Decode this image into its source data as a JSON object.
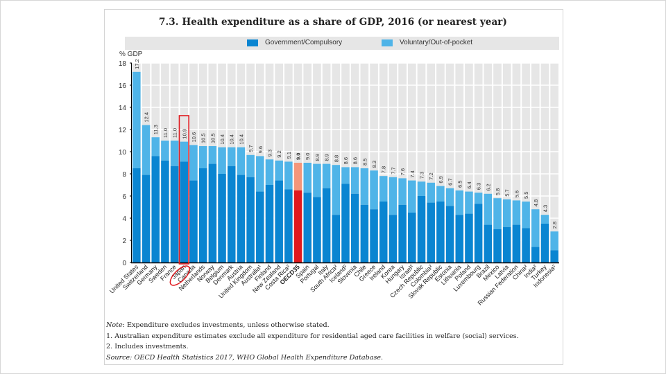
{
  "chart_data": {
    "type": "bar",
    "stacked": true,
    "title": "7.3. Health expenditure as a share of GDP, 2016 (or nearest year)",
    "xlabel": "",
    "ylabel": "% GDP",
    "ylim": [
      0,
      18
    ],
    "yticks": [
      0,
      2,
      4,
      6,
      8,
      10,
      12,
      14,
      16,
      18
    ],
    "grid": true,
    "legend_position": "top",
    "highlight": {
      "category": "Japan",
      "style": "red outline box and circled label"
    },
    "categories": [
      "United States",
      "Switzerland",
      "Germany",
      "Sweden",
      "France",
      "Japan",
      "Canada",
      "Netherlands",
      "Norway",
      "Belgium",
      "Denmark",
      "Austria",
      "United Kingdom",
      "Australia¹",
      "Finland",
      "New Zealand",
      "Costa Rica²",
      "OECD35",
      "Spain",
      "Portugal",
      "Italy",
      "South Africa²",
      "Iceland²",
      "Slovenia",
      "Chile",
      "Greece",
      "Ireland",
      "Korea",
      "Hungary",
      "Israel²",
      "Czech Republic",
      "Colombia²",
      "Slovak Republic",
      "Estonia",
      "Lithuania",
      "Poland",
      "Luxembourg",
      "Brazil",
      "Mexico",
      "Latvia",
      "Russian Federation",
      "China²",
      "India²",
      "Turkey",
      "Indonesia²"
    ],
    "totals": [
      17.2,
      12.4,
      11.3,
      11.0,
      11.0,
      10.9,
      10.6,
      10.5,
      10.5,
      10.4,
      10.4,
      10.4,
      9.7,
      9.6,
      9.3,
      9.2,
      9.1,
      9.0,
      9.0,
      8.9,
      8.9,
      8.8,
      8.6,
      8.6,
      8.5,
      8.3,
      7.8,
      7.7,
      7.6,
      7.4,
      7.3,
      7.2,
      6.9,
      6.7,
      6.5,
      6.4,
      6.3,
      6.2,
      5.8,
      5.7,
      5.6,
      5.5,
      4.8,
      4.3,
      2.8
    ],
    "series": [
      {
        "name": "Government/Compulsory",
        "color": "#0a85d1",
        "values": [
          8.5,
          7.9,
          9.6,
          9.2,
          8.7,
          9.1,
          7.4,
          8.5,
          8.9,
          8.0,
          8.7,
          7.9,
          7.7,
          6.4,
          7.0,
          7.4,
          6.6,
          6.5,
          6.3,
          5.9,
          6.7,
          4.3,
          7.1,
          6.2,
          5.2,
          4.8,
          5.5,
          4.3,
          5.2,
          4.5,
          6.0,
          5.4,
          5.5,
          5.1,
          4.3,
          4.4,
          5.3,
          3.4,
          3.0,
          3.2,
          3.4,
          3.1,
          1.4,
          3.5,
          1.1
        ]
      },
      {
        "name": "Voluntary/Out-of-pocket",
        "color": "#4fb4e8",
        "values": [
          8.7,
          4.5,
          1.7,
          1.8,
          2.3,
          1.8,
          3.2,
          2.0,
          1.6,
          2.4,
          1.7,
          2.5,
          2.0,
          3.2,
          2.3,
          1.8,
          2.5,
          2.5,
          2.7,
          3.0,
          2.2,
          4.5,
          1.5,
          2.4,
          3.3,
          3.5,
          2.3,
          3.4,
          2.4,
          2.9,
          1.3,
          1.8,
          1.4,
          1.6,
          2.2,
          2.0,
          1.0,
          2.8,
          2.8,
          2.5,
          2.2,
          2.4,
          3.4,
          0.8,
          1.7
        ]
      }
    ],
    "highlight_colors": {
      "OECD35_government": "#e0191e",
      "OECD35_voluntary": "#f4967a"
    }
  },
  "notes": {
    "note_label": "Note",
    "note_text": ": Expenditure excludes investments, unless otherwise stated.",
    "footnote1": "1.  Australian expenditure estimates exclude all expenditure for residential aged care facilities in welfare (social) services.",
    "footnote2": "2.  Includes investments.",
    "source_label": "Source",
    "source_text": ": OECD Health Statistics 2017, WHO Global Health Expenditure Database."
  }
}
